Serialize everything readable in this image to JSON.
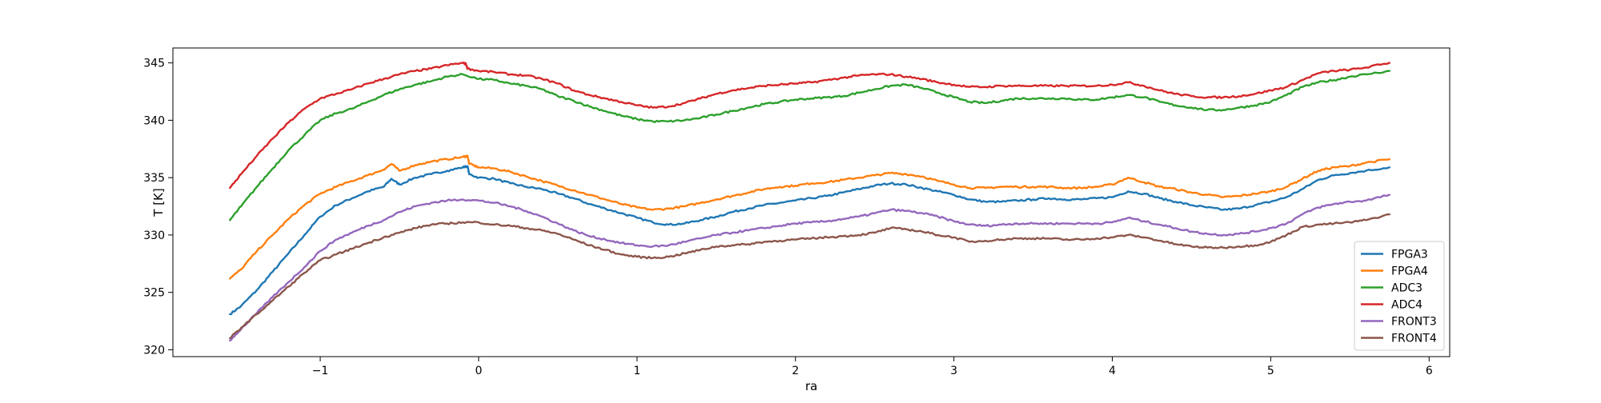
{
  "chart_data": {
    "type": "line",
    "xlabel": "ra",
    "ylabel": "T [K]",
    "xlim": [
      -1.93,
      6.13
    ],
    "ylim": [
      319.4,
      346.3
    ],
    "xticks": [
      -1,
      0,
      1,
      2,
      3,
      4,
      5,
      6
    ],
    "xtick_labels": [
      "−1",
      "0",
      "1",
      "2",
      "3",
      "4",
      "5",
      "6"
    ],
    "yticks": [
      320,
      325,
      330,
      335,
      340,
      345
    ],
    "ytick_labels": [
      "320",
      "325",
      "330",
      "335",
      "340",
      "345"
    ],
    "grid": false,
    "legend_position": "lower-right",
    "series": [
      {
        "name": "FPGA3",
        "color": "#1f77b4",
        "x": [
          -1.57,
          -1.5,
          -1.4,
          -1.3,
          -1.2,
          -1.1,
          -1.0,
          -0.9,
          -0.8,
          -0.7,
          -0.6,
          -0.55,
          -0.5,
          -0.4,
          -0.3,
          -0.2,
          -0.1,
          -0.07,
          -0.06,
          0.0,
          0.1,
          0.2,
          0.3,
          0.4,
          0.5,
          0.6,
          0.7,
          0.8,
          0.9,
          1.0,
          1.1,
          1.2,
          1.3,
          1.4,
          1.5,
          1.6,
          1.7,
          1.8,
          1.9,
          2.0,
          2.1,
          2.2,
          2.3,
          2.4,
          2.5,
          2.6,
          2.7,
          2.8,
          2.9,
          3.0,
          3.1,
          3.2,
          3.3,
          3.4,
          3.5,
          3.6,
          3.7,
          3.8,
          3.9,
          4.0,
          4.1,
          4.2,
          4.3,
          4.4,
          4.5,
          4.6,
          4.7,
          4.8,
          4.9,
          5.0,
          5.1,
          5.2,
          5.3,
          5.4,
          5.5,
          5.6,
          5.75
        ],
        "y": [
          323.1,
          323.8,
          325.2,
          326.8,
          328.4,
          330.0,
          331.6,
          332.6,
          333.2,
          333.8,
          334.2,
          334.9,
          334.4,
          335.0,
          335.3,
          335.6,
          335.9,
          336.0,
          335.3,
          335.0,
          334.9,
          334.5,
          334.2,
          334.0,
          333.6,
          333.2,
          332.7,
          332.3,
          331.9,
          331.5,
          331.1,
          330.9,
          331.0,
          331.3,
          331.6,
          332.0,
          332.3,
          332.6,
          332.8,
          333.0,
          333.2,
          333.4,
          333.7,
          334.0,
          334.3,
          334.5,
          334.4,
          334.1,
          333.8,
          333.5,
          333.1,
          332.9,
          332.9,
          333.0,
          333.1,
          333.2,
          333.1,
          333.1,
          333.2,
          333.3,
          333.8,
          333.6,
          333.2,
          332.9,
          332.6,
          332.4,
          332.2,
          332.3,
          332.6,
          332.9,
          333.3,
          334.0,
          334.8,
          335.2,
          335.4,
          335.6,
          335.9
        ]
      },
      {
        "name": "FPGA4",
        "color": "#ff7f0e",
        "x": [
          -1.57,
          -1.5,
          -1.4,
          -1.3,
          -1.2,
          -1.1,
          -1.0,
          -0.9,
          -0.8,
          -0.7,
          -0.6,
          -0.55,
          -0.5,
          -0.4,
          -0.3,
          -0.2,
          -0.1,
          -0.07,
          -0.06,
          0.0,
          0.1,
          0.2,
          0.3,
          0.4,
          0.5,
          0.6,
          0.7,
          0.8,
          0.9,
          1.0,
          1.1,
          1.2,
          1.3,
          1.4,
          1.5,
          1.6,
          1.7,
          1.8,
          1.9,
          2.0,
          2.1,
          2.2,
          2.3,
          2.4,
          2.5,
          2.6,
          2.7,
          2.8,
          2.9,
          3.0,
          3.1,
          3.2,
          3.3,
          3.4,
          3.5,
          3.6,
          3.7,
          3.8,
          3.9,
          4.0,
          4.1,
          4.2,
          4.3,
          4.4,
          4.5,
          4.6,
          4.7,
          4.8,
          4.9,
          5.0,
          5.1,
          5.2,
          5.3,
          5.4,
          5.5,
          5.6,
          5.75
        ],
        "y": [
          326.2,
          327.0,
          328.6,
          330.0,
          331.4,
          332.6,
          333.6,
          334.2,
          334.7,
          335.2,
          335.7,
          336.2,
          335.6,
          336.1,
          336.4,
          336.6,
          336.8,
          336.9,
          336.2,
          335.9,
          335.8,
          335.5,
          335.1,
          334.7,
          334.3,
          333.9,
          333.5,
          333.1,
          332.7,
          332.4,
          332.2,
          332.3,
          332.5,
          332.8,
          333.1,
          333.4,
          333.7,
          334.0,
          334.2,
          334.3,
          334.5,
          334.6,
          334.8,
          335.0,
          335.2,
          335.4,
          335.3,
          335.1,
          334.7,
          334.4,
          334.1,
          334.1,
          334.2,
          334.2,
          334.2,
          334.2,
          334.1,
          334.1,
          334.2,
          334.4,
          335.0,
          334.6,
          334.2,
          334.0,
          333.7,
          333.5,
          333.3,
          333.4,
          333.6,
          333.8,
          334.2,
          334.9,
          335.6,
          335.9,
          336.0,
          336.3,
          336.6
        ]
      },
      {
        "name": "ADC3",
        "color": "#2ca02c",
        "x": [
          -1.57,
          -1.5,
          -1.4,
          -1.3,
          -1.2,
          -1.1,
          -1.0,
          -0.9,
          -0.8,
          -0.7,
          -0.6,
          -0.5,
          -0.4,
          -0.3,
          -0.2,
          -0.1,
          0.0,
          0.1,
          0.2,
          0.3,
          0.4,
          0.5,
          0.6,
          0.7,
          0.8,
          0.9,
          1.0,
          1.1,
          1.2,
          1.3,
          1.4,
          1.5,
          1.6,
          1.7,
          1.8,
          1.9,
          2.0,
          2.1,
          2.2,
          2.3,
          2.4,
          2.5,
          2.6,
          2.7,
          2.8,
          2.9,
          3.0,
          3.1,
          3.2,
          3.3,
          3.4,
          3.5,
          3.6,
          3.7,
          3.8,
          3.9,
          4.0,
          4.1,
          4.2,
          4.3,
          4.4,
          4.5,
          4.6,
          4.7,
          4.8,
          4.9,
          5.0,
          5.1,
          5.2,
          5.3,
          5.4,
          5.5,
          5.6,
          5.75
        ],
        "y": [
          331.3,
          332.5,
          334.2,
          335.8,
          337.4,
          338.7,
          340.0,
          340.6,
          341.0,
          341.6,
          342.2,
          342.7,
          343.1,
          343.4,
          343.8,
          344.0,
          343.6,
          343.5,
          343.2,
          343.0,
          342.7,
          342.1,
          341.7,
          341.2,
          340.8,
          340.4,
          340.1,
          339.9,
          339.9,
          340.0,
          340.2,
          340.5,
          340.8,
          341.1,
          341.4,
          341.6,
          341.8,
          341.9,
          342.0,
          342.1,
          342.4,
          342.7,
          343.0,
          343.1,
          342.8,
          342.4,
          342.0,
          341.6,
          341.5,
          341.7,
          341.9,
          341.9,
          341.9,
          341.9,
          341.8,
          341.8,
          342.0,
          342.2,
          342.0,
          341.6,
          341.3,
          341.1,
          340.9,
          340.9,
          341.1,
          341.3,
          341.6,
          342.2,
          342.9,
          343.3,
          343.5,
          343.8,
          344.0,
          344.3
        ]
      },
      {
        "name": "ADC4",
        "color": "#d62728",
        "x": [
          -1.57,
          -1.5,
          -1.4,
          -1.3,
          -1.2,
          -1.1,
          -1.0,
          -0.9,
          -0.8,
          -0.7,
          -0.6,
          -0.5,
          -0.4,
          -0.3,
          -0.2,
          -0.1,
          -0.08,
          -0.07,
          0.0,
          0.1,
          0.2,
          0.3,
          0.4,
          0.5,
          0.6,
          0.7,
          0.8,
          0.9,
          1.0,
          1.1,
          1.2,
          1.3,
          1.4,
          1.5,
          1.6,
          1.7,
          1.8,
          1.9,
          2.0,
          2.1,
          2.2,
          2.3,
          2.4,
          2.5,
          2.6,
          2.7,
          2.8,
          2.9,
          3.0,
          3.1,
          3.2,
          3.3,
          3.4,
          3.5,
          3.6,
          3.7,
          3.8,
          3.9,
          4.0,
          4.1,
          4.2,
          4.3,
          4.4,
          4.5,
          4.6,
          4.7,
          4.8,
          4.9,
          5.0,
          5.1,
          5.2,
          5.3,
          5.4,
          5.5,
          5.6,
          5.75
        ],
        "y": [
          334.1,
          335.3,
          336.9,
          338.4,
          339.8,
          341.0,
          341.9,
          342.3,
          342.7,
          343.2,
          343.6,
          344.0,
          344.3,
          344.5,
          344.8,
          345.0,
          344.9,
          344.5,
          344.3,
          344.2,
          344.0,
          343.9,
          343.6,
          343.2,
          342.6,
          342.2,
          341.9,
          341.6,
          341.3,
          341.1,
          341.2,
          341.5,
          341.9,
          342.3,
          342.6,
          342.8,
          343.0,
          343.1,
          343.2,
          343.3,
          343.5,
          343.7,
          343.9,
          344.0,
          344.0,
          343.8,
          343.6,
          343.3,
          343.1,
          342.9,
          342.9,
          343.0,
          343.0,
          343.0,
          343.0,
          343.0,
          343.0,
          343.0,
          343.1,
          343.3,
          343.0,
          342.6,
          342.3,
          342.1,
          342.0,
          342.0,
          342.1,
          342.3,
          342.6,
          342.9,
          343.5,
          344.1,
          344.3,
          344.4,
          344.6,
          345.0
        ]
      },
      {
        "name": "FRONT3",
        "color": "#9467bd",
        "x": [
          -1.57,
          -1.5,
          -1.4,
          -1.3,
          -1.2,
          -1.1,
          -1.0,
          -0.9,
          -0.8,
          -0.7,
          -0.6,
          -0.5,
          -0.4,
          -0.3,
          -0.2,
          -0.1,
          0.0,
          0.1,
          0.2,
          0.3,
          0.4,
          0.5,
          0.6,
          0.7,
          0.8,
          0.9,
          1.0,
          1.1,
          1.2,
          1.3,
          1.4,
          1.5,
          1.6,
          1.7,
          1.8,
          1.9,
          2.0,
          2.1,
          2.2,
          2.3,
          2.4,
          2.5,
          2.6,
          2.7,
          2.8,
          2.9,
          3.0,
          3.1,
          3.2,
          3.3,
          3.4,
          3.5,
          3.6,
          3.7,
          3.8,
          3.9,
          4.0,
          4.1,
          4.2,
          4.3,
          4.4,
          4.5,
          4.6,
          4.7,
          4.8,
          4.9,
          5.0,
          5.1,
          5.2,
          5.3,
          5.4,
          5.5,
          5.6,
          5.75
        ],
        "y": [
          320.8,
          321.8,
          323.2,
          324.6,
          325.9,
          327.2,
          328.6,
          329.6,
          330.2,
          330.8,
          331.3,
          332.0,
          332.5,
          332.8,
          333.0,
          333.1,
          333.0,
          332.8,
          332.5,
          332.1,
          331.6,
          331.0,
          330.4,
          329.9,
          329.6,
          329.3,
          329.1,
          329.0,
          329.1,
          329.4,
          329.7,
          330.0,
          330.2,
          330.4,
          330.6,
          330.8,
          331.0,
          331.1,
          331.2,
          331.4,
          331.6,
          331.9,
          332.2,
          332.1,
          331.9,
          331.6,
          331.2,
          330.9,
          330.8,
          330.9,
          331.0,
          331.0,
          331.0,
          331.0,
          331.0,
          331.0,
          331.1,
          331.5,
          331.2,
          330.9,
          330.6,
          330.3,
          330.1,
          330.0,
          330.1,
          330.3,
          330.6,
          331.0,
          331.8,
          332.4,
          332.7,
          332.9,
          333.0,
          333.5
        ]
      },
      {
        "name": "FRONT4",
        "color": "#8c564b",
        "x": [
          -1.57,
          -1.5,
          -1.4,
          -1.3,
          -1.2,
          -1.1,
          -1.0,
          -0.9,
          -0.8,
          -0.7,
          -0.6,
          -0.5,
          -0.4,
          -0.3,
          -0.2,
          -0.1,
          0.0,
          0.1,
          0.2,
          0.3,
          0.4,
          0.5,
          0.6,
          0.7,
          0.8,
          0.9,
          1.0,
          1.1,
          1.2,
          1.3,
          1.4,
          1.5,
          1.6,
          1.7,
          1.8,
          1.9,
          2.0,
          2.1,
          2.2,
          2.3,
          2.4,
          2.5,
          2.6,
          2.7,
          2.8,
          2.9,
          3.0,
          3.1,
          3.2,
          3.3,
          3.4,
          3.5,
          3.6,
          3.7,
          3.8,
          3.9,
          4.0,
          4.1,
          4.2,
          4.3,
          4.4,
          4.5,
          4.6,
          4.7,
          4.8,
          4.9,
          5.0,
          5.1,
          5.2,
          5.3,
          5.4,
          5.5,
          5.6,
          5.75
        ],
        "y": [
          321.0,
          321.9,
          323.1,
          324.3,
          325.5,
          326.7,
          327.8,
          328.3,
          328.8,
          329.3,
          329.8,
          330.2,
          330.6,
          330.9,
          331.0,
          331.1,
          331.1,
          330.9,
          330.8,
          330.6,
          330.4,
          330.1,
          329.6,
          329.1,
          328.7,
          328.3,
          328.1,
          328.0,
          328.1,
          328.4,
          328.7,
          329.0,
          329.1,
          329.2,
          329.4,
          329.5,
          329.6,
          329.7,
          329.8,
          329.9,
          330.0,
          330.2,
          330.6,
          330.5,
          330.3,
          330.0,
          329.8,
          329.4,
          329.5,
          329.6,
          329.7,
          329.7,
          329.7,
          329.6,
          329.6,
          329.7,
          329.8,
          330.0,
          329.8,
          329.5,
          329.2,
          329.0,
          328.9,
          328.9,
          329.0,
          329.1,
          329.4,
          330.0,
          330.7,
          330.9,
          331.0,
          331.1,
          331.3,
          331.8
        ]
      }
    ]
  }
}
